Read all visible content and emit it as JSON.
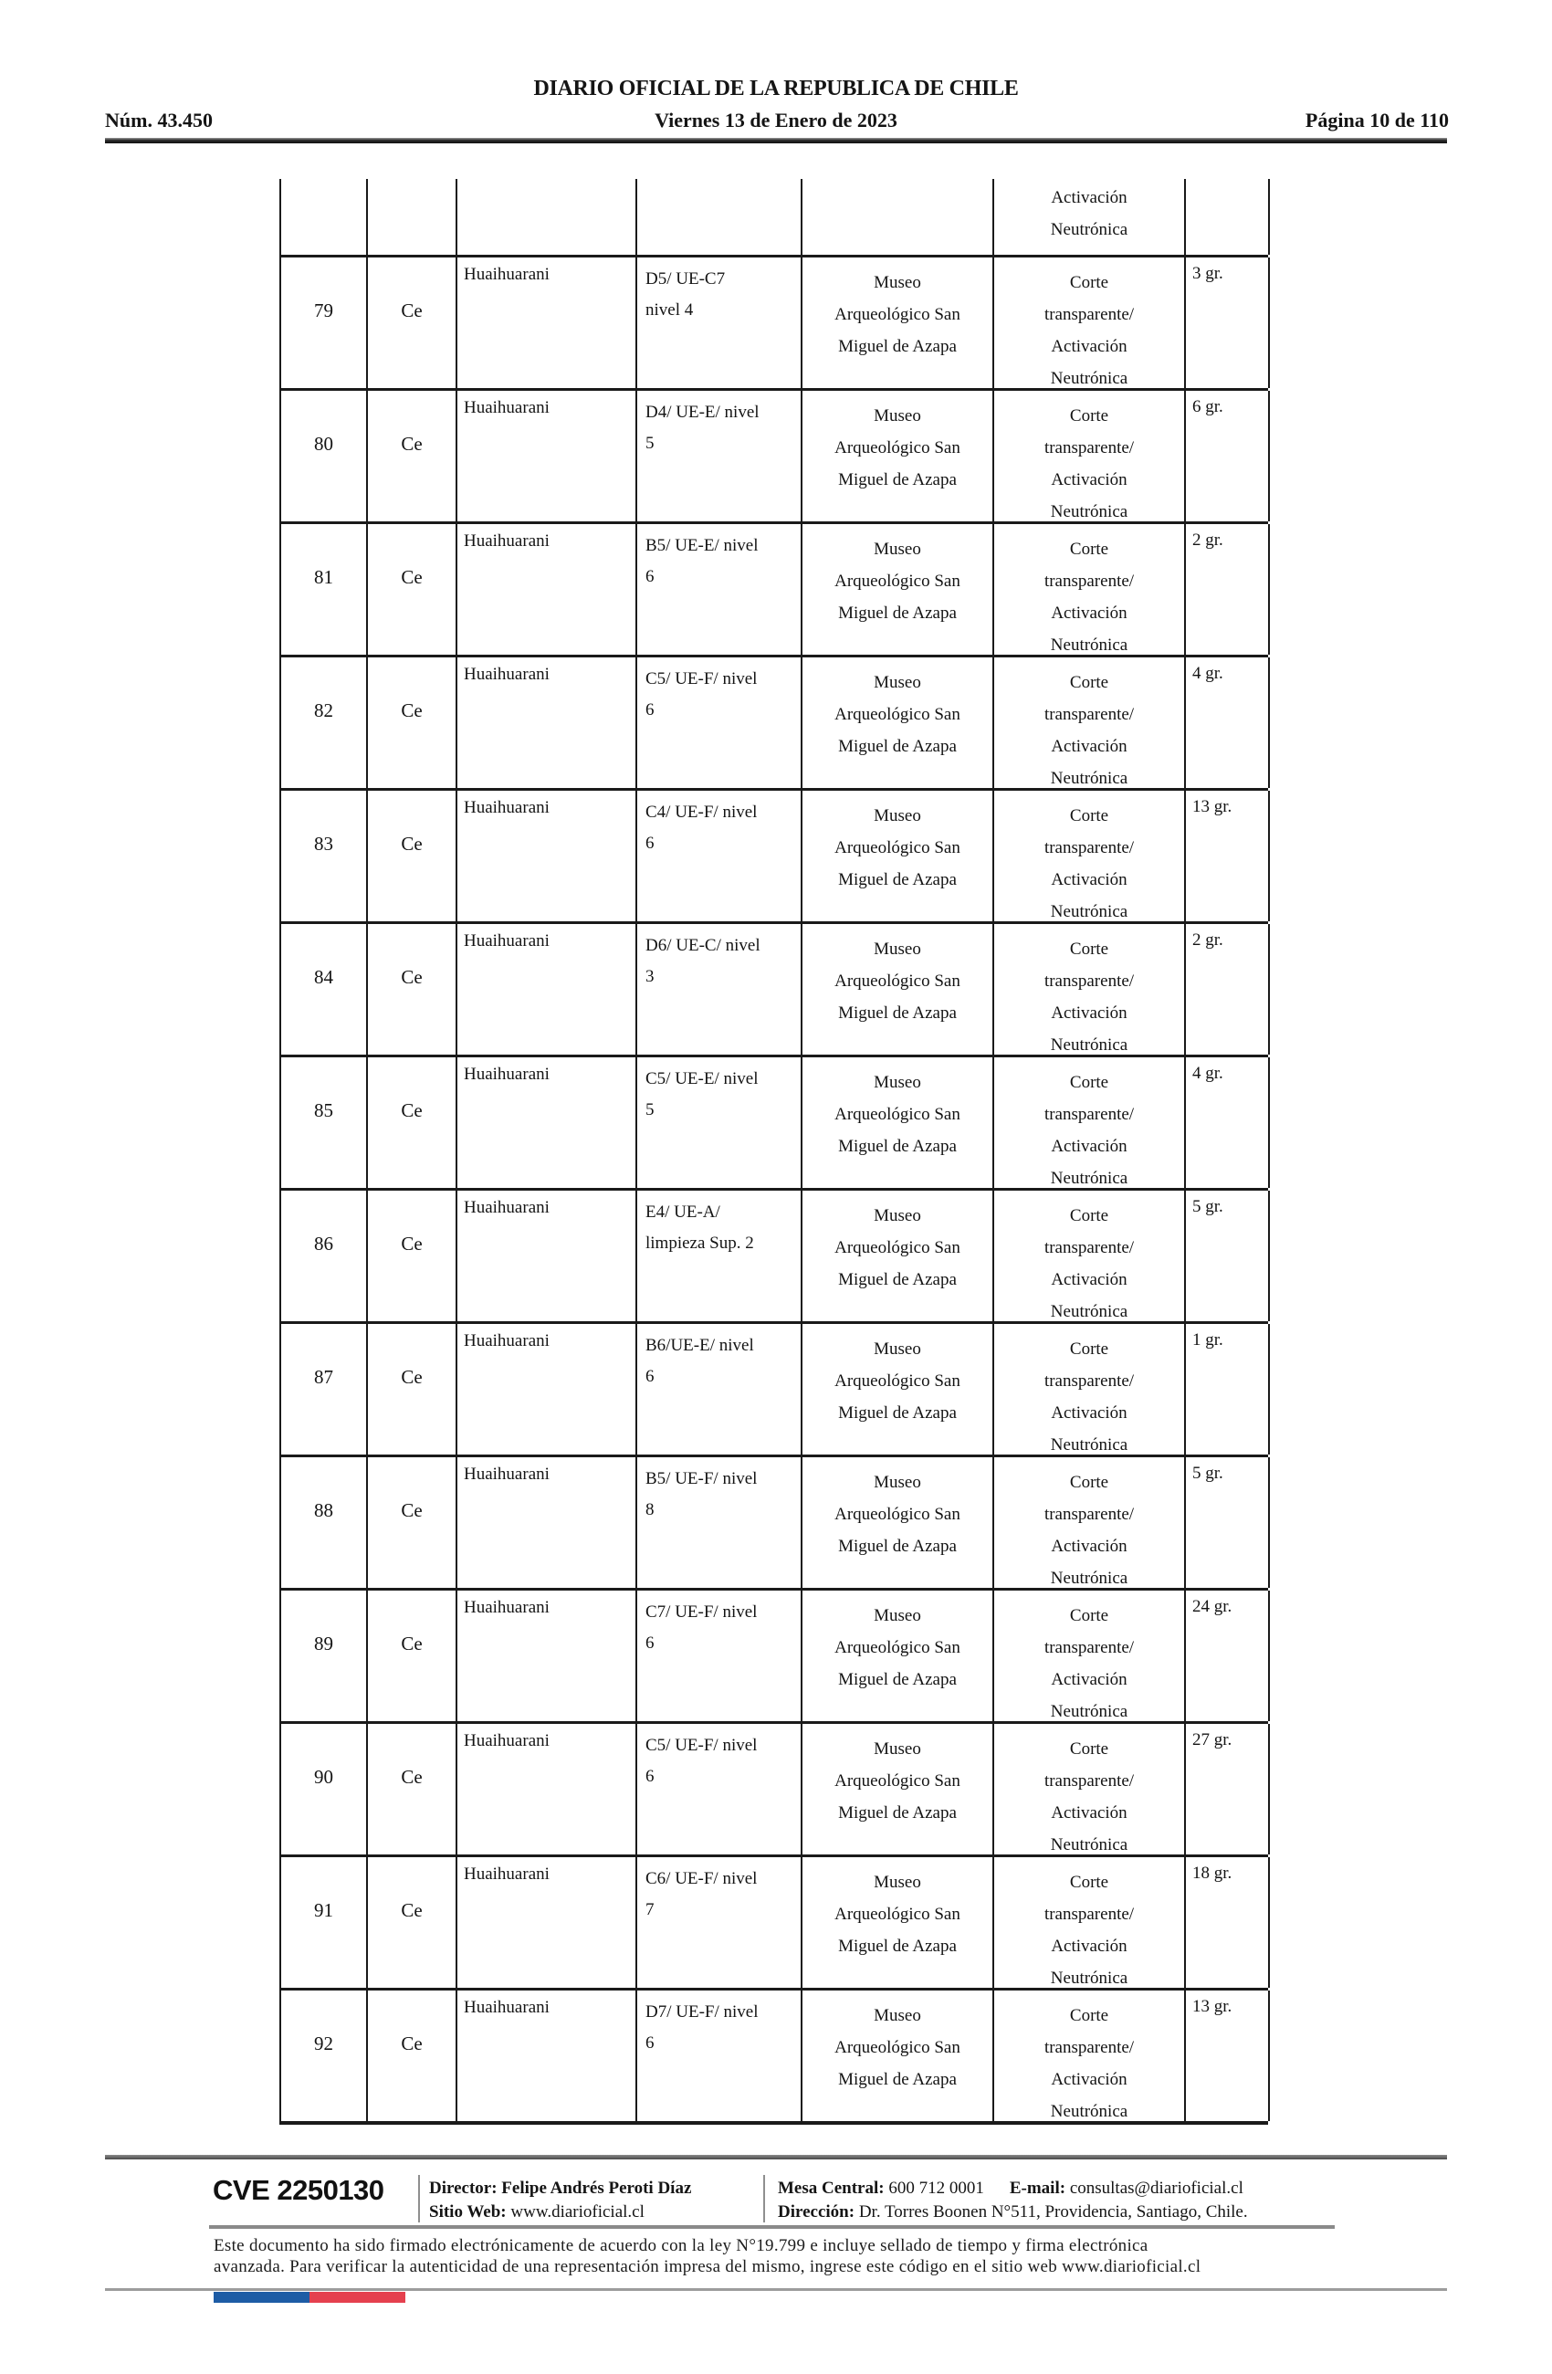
{
  "header": {
    "title": "DIARIO OFICIAL DE LA REPUBLICA DE CHILE",
    "issue_number": "Núm. 43.450",
    "date": "Viernes 13 de Enero de 2023",
    "page_indicator": "Página 10 de 110"
  },
  "table": {
    "partial_row": {
      "analysis": "Activación\nNeutrónica"
    },
    "rows": [
      {
        "num": "79",
        "material": "Ce",
        "site": "Huaihuarani",
        "context": "D5/ UE-C7\nnivel 4",
        "repository": "Museo\nArqueológico San\nMiguel de Azapa",
        "analysis": "Corte\ntransparente/\nActivación\nNeutrónica",
        "weight": "3 gr."
      },
      {
        "num": "80",
        "material": "Ce",
        "site": "Huaihuarani",
        "context": "D4/ UE-E/ nivel\n5",
        "repository": "Museo\nArqueológico San\nMiguel de Azapa",
        "analysis": "Corte\ntransparente/\nActivación\nNeutrónica",
        "weight": "6 gr."
      },
      {
        "num": "81",
        "material": "Ce",
        "site": "Huaihuarani",
        "context": "B5/ UE-E/ nivel\n6",
        "repository": "Museo\nArqueológico San\nMiguel de Azapa",
        "analysis": "Corte\ntransparente/\nActivación\nNeutrónica",
        "weight": "2 gr."
      },
      {
        "num": "82",
        "material": "Ce",
        "site": "Huaihuarani",
        "context": "C5/ UE-F/ nivel\n6",
        "repository": "Museo\nArqueológico San\nMiguel de Azapa",
        "analysis": "Corte\ntransparente/\nActivación\nNeutrónica",
        "weight": "4 gr."
      },
      {
        "num": "83",
        "material": "Ce",
        "site": "Huaihuarani",
        "context": "C4/ UE-F/ nivel\n6",
        "repository": "Museo\nArqueológico San\nMiguel de Azapa",
        "analysis": "Corte\ntransparente/\nActivación\nNeutrónica",
        "weight": "13 gr."
      },
      {
        "num": "84",
        "material": "Ce",
        "site": "Huaihuarani",
        "context": "D6/ UE-C/ nivel\n3",
        "repository": "Museo\nArqueológico San\nMiguel de Azapa",
        "analysis": "Corte\ntransparente/\nActivación\nNeutrónica",
        "weight": "2 gr."
      },
      {
        "num": "85",
        "material": "Ce",
        "site": "Huaihuarani",
        "context": "C5/ UE-E/ nivel\n5",
        "repository": "Museo\nArqueológico San\nMiguel de Azapa",
        "analysis": "Corte\ntransparente/\nActivación\nNeutrónica",
        "weight": "4 gr."
      },
      {
        "num": "86",
        "material": "Ce",
        "site": "Huaihuarani",
        "context": "E4/ UE-A/\nlimpieza Sup. 2",
        "repository": "Museo\nArqueológico San\nMiguel de Azapa",
        "analysis": "Corte\ntransparente/\nActivación\nNeutrónica",
        "weight": "5 gr."
      },
      {
        "num": "87",
        "material": "Ce",
        "site": "Huaihuarani",
        "context": "B6/UE-E/ nivel\n6",
        "repository": "Museo\nArqueológico San\nMiguel de Azapa",
        "analysis": "Corte\ntransparente/\nActivación\nNeutrónica",
        "weight": "1 gr."
      },
      {
        "num": "88",
        "material": "Ce",
        "site": "Huaihuarani",
        "context": "B5/ UE-F/ nivel\n8",
        "repository": "Museo\nArqueológico San\nMiguel de Azapa",
        "analysis": "Corte\ntransparente/\nActivación\nNeutrónica",
        "weight": "5 gr."
      },
      {
        "num": "89",
        "material": "Ce",
        "site": "Huaihuarani",
        "context": "C7/ UE-F/ nivel\n6",
        "repository": "Museo\nArqueológico San\nMiguel de Azapa",
        "analysis": "Corte\ntransparente/\nActivación\nNeutrónica",
        "weight": "24 gr."
      },
      {
        "num": "90",
        "material": "Ce",
        "site": "Huaihuarani",
        "context": "C5/ UE-F/ nivel\n6",
        "repository": "Museo\nArqueológico San\nMiguel de Azapa",
        "analysis": "Corte\ntransparente/\nActivación\nNeutrónica",
        "weight": "27 gr."
      },
      {
        "num": "91",
        "material": "Ce",
        "site": "Huaihuarani",
        "context": "C6/ UE-F/ nivel\n7",
        "repository": "Museo\nArqueológico San\nMiguel de Azapa",
        "analysis": "Corte\ntransparente/\nActivación\nNeutrónica",
        "weight": "18 gr."
      },
      {
        "num": "92",
        "material": "Ce",
        "site": "Huaihuarani",
        "context": "D7/ UE-F/ nivel\n6",
        "repository": "Museo\nArqueológico San\nMiguel de Azapa",
        "analysis": "Corte\ntransparente/\nActivación\nNeutrónica",
        "weight": "13 gr."
      }
    ]
  },
  "footer": {
    "cve": "CVE 2250130",
    "director_label": "Director:",
    "director_name": "Felipe Andrés Peroti Díaz",
    "website_label": "Sitio Web:",
    "website": "www.diarioficial.cl",
    "phone_label": "Mesa Central:",
    "phone": "600 712 0001",
    "email_label": "E-mail:",
    "email": "consultas@diarioficial.cl",
    "address_label": "Dirección:",
    "address": "Dr. Torres Boonen N°511, Providencia, Santiago, Chile.",
    "legal_line1": "Este documento ha sido firmado electrónicamente de acuerdo con la ley N°19.799 e incluye sellado de tiempo y firma electrónica",
    "legal_line2": "avanzada. Para verificar la autenticidad de una representación impresa del mismo, ingrese este código en el sitio web www.diarioficial.cl",
    "flag_blue": "#1d5ca5",
    "flag_red": "#e5404e"
  }
}
